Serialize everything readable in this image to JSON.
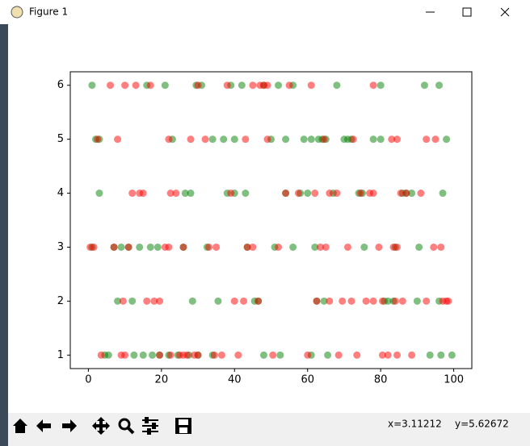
{
  "window": {
    "title": "Figure 1"
  },
  "chart_data": {
    "type": "scatter",
    "series": [
      {
        "color": "green",
        "x": [
          1,
          16,
          21,
          29.5,
          31,
          39,
          42,
          48,
          52,
          56,
          68,
          80,
          92,
          96,
          2,
          3,
          23,
          34,
          37,
          40,
          50,
          54,
          59,
          61,
          63,
          64,
          65,
          70,
          71,
          72,
          78,
          80,
          98,
          3,
          26.5,
          28,
          38,
          40,
          43,
          54,
          58,
          60,
          67,
          74,
          75,
          86,
          87,
          88.5,
          97,
          1,
          7,
          9,
          11,
          14,
          17,
          19,
          26,
          32.5,
          43.5,
          51,
          56,
          62,
          75.5,
          84,
          90.5,
          8,
          12,
          28.5,
          35.5,
          45.5,
          46.5,
          62.5,
          64.5,
          81,
          82,
          83.5,
          90,
          96,
          4.5,
          5.5,
          12.5,
          15,
          17.5,
          19.5,
          22,
          24.5,
          27.5,
          30,
          34,
          48,
          52.5,
          61,
          65.5,
          93.5,
          96.5,
          99.5
        ],
        "y": [
          6,
          6,
          6,
          6,
          6,
          6,
          6,
          6,
          6,
          6,
          6,
          6,
          6,
          6,
          5,
          5,
          5,
          5,
          5,
          5,
          5,
          5,
          5,
          5,
          5,
          5,
          5,
          5,
          5,
          5,
          5,
          5,
          5,
          4,
          4,
          4,
          4,
          4,
          4,
          4,
          4,
          4,
          4,
          4,
          4,
          4,
          4,
          4,
          4,
          3,
          3,
          3,
          3,
          3,
          3,
          3,
          3,
          3,
          3,
          3,
          3,
          3,
          3,
          3,
          3,
          2,
          2,
          2,
          2,
          2,
          2,
          2,
          2,
          2,
          2,
          2,
          2,
          2,
          1,
          1,
          1,
          1,
          1,
          1,
          1,
          1,
          1,
          1,
          1,
          1,
          1,
          1,
          1,
          1,
          1,
          1
        ]
      },
      {
        "color": "red",
        "x": [
          6,
          10,
          13,
          17,
          30,
          38,
          45,
          47,
          48,
          49,
          55,
          61,
          78,
          2.5,
          8,
          22,
          28,
          32,
          43,
          49,
          64.5,
          72.5,
          83,
          84.5,
          92.5,
          95,
          12,
          14,
          15,
          22.5,
          24,
          39,
          54,
          57.5,
          62,
          66,
          68,
          74.5,
          77,
          78,
          85.5,
          87,
          91,
          0.5,
          1.5,
          7,
          11,
          21,
          22,
          26,
          33,
          35,
          43.5,
          45,
          52,
          63.5,
          65,
          71,
          79.5,
          83.5,
          84.5,
          94.5,
          96.5,
          9.5,
          16,
          18,
          19.5,
          40,
          42.5,
          46.5,
          62.5,
          66,
          69.5,
          72,
          76,
          78,
          80.5,
          84,
          86,
          92.5,
          97,
          98,
          98.5,
          3.5,
          9,
          10,
          19.5,
          22.5,
          25,
          26,
          27,
          29,
          30,
          34.5,
          36.5,
          41,
          50.5,
          60,
          68.5,
          73.5,
          80.5,
          82,
          84.5,
          88.5
        ],
        "y": [
          6,
          6,
          6,
          6,
          6,
          6,
          6,
          6,
          6,
          6,
          6,
          6,
          6,
          5,
          5,
          5,
          5,
          5,
          5,
          5,
          5,
          5,
          5,
          5,
          5,
          5,
          4,
          4,
          4,
          4,
          4,
          4,
          4,
          4,
          4,
          4,
          4,
          4,
          4,
          4,
          4,
          4,
          4,
          3,
          3,
          3,
          3,
          3,
          3,
          3,
          3,
          3,
          3,
          3,
          3,
          3,
          3,
          3,
          3,
          3,
          3,
          3,
          3,
          2,
          2,
          2,
          2,
          2,
          2,
          2,
          2,
          2,
          2,
          2,
          2,
          2,
          2,
          2,
          2,
          2,
          2,
          2,
          2,
          1,
          1,
          1,
          1,
          1,
          1,
          1,
          1,
          1,
          1,
          1,
          1,
          1,
          1,
          1,
          1,
          1,
          1,
          1,
          1,
          1
        ]
      }
    ],
    "alpha": 0.5,
    "xlim": [
      -4.95,
      104.95
    ],
    "ylim": [
      0.75,
      6.25
    ],
    "xticks": [
      0,
      20,
      40,
      60,
      80,
      100
    ],
    "yticks": [
      1,
      2,
      3,
      4,
      5,
      6
    ]
  },
  "status": {
    "x": "x=3.11212",
    "y": "y=5.62672"
  }
}
